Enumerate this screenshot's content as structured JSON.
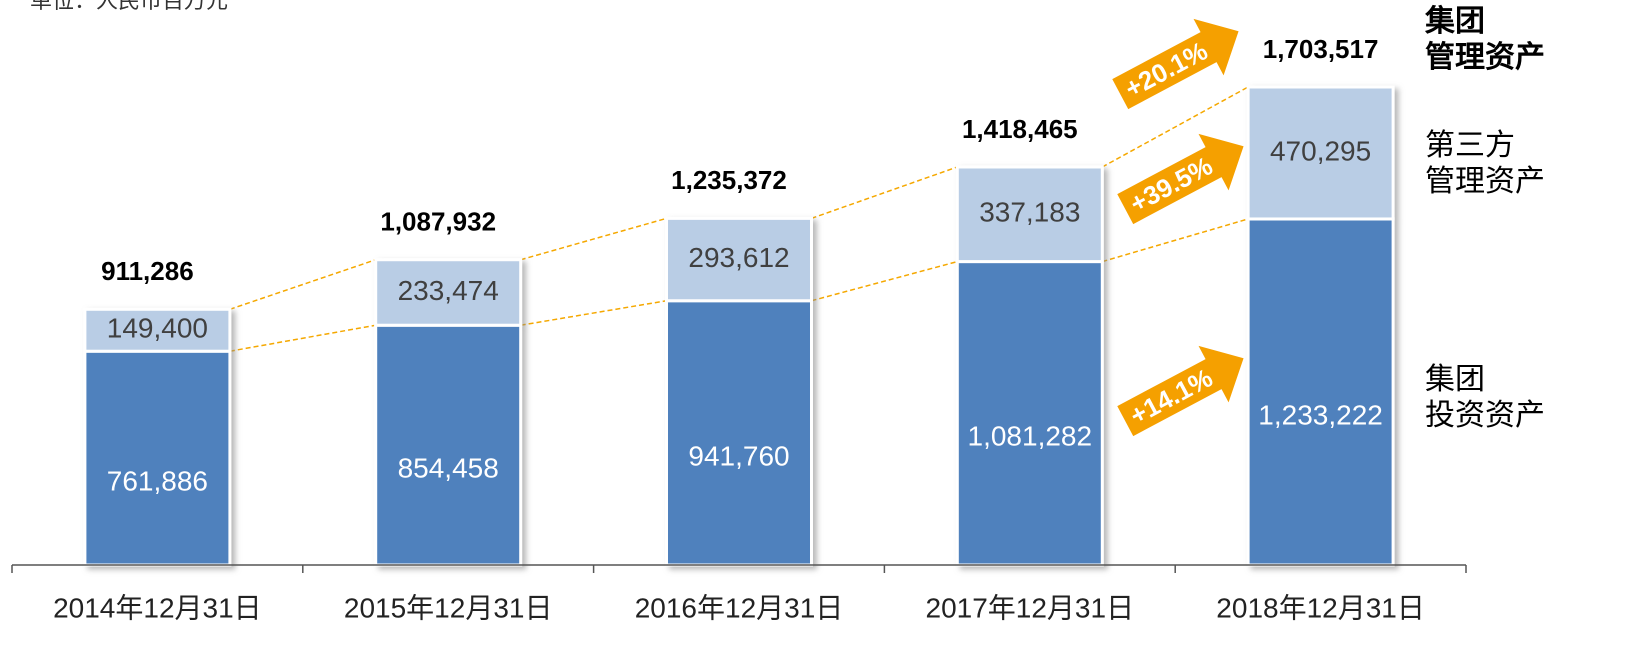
{
  "chart_data": {
    "type": "stacked_bar",
    "unit_note": "单位：人民币百万元",
    "categories": [
      "2014年12月31日",
      "2015年12月31日",
      "2016年12月31日",
      "2017年12月31日",
      "2018年12月31日"
    ],
    "series": [
      {
        "name": "集团\n投资资产",
        "color": "#4f81bd",
        "values": [
          761886,
          854458,
          941760,
          1081282,
          1233222
        ],
        "value_labels": [
          "761,886",
          "854,458",
          "941,760",
          "1,081,282",
          "1,233,222"
        ]
      },
      {
        "name": "第三方\n管理资产",
        "color": "#b9cde5",
        "values": [
          149400,
          233474,
          293612,
          337183,
          470295
        ],
        "value_labels": [
          "149,400",
          "233,474",
          "293,612",
          "337,183",
          "470,295"
        ]
      }
    ],
    "totals": {
      "name": "集团\n管理资产",
      "values": [
        911286,
        1087932,
        1235372,
        1418465,
        1703517
      ],
      "value_labels": [
        "911,286",
        "1,087,932",
        "1,235,372",
        "1,418,465",
        "1,703,517"
      ]
    },
    "annotations": [
      "+20.1%",
      "+39.5%",
      "+14.1%"
    ],
    "ylim": [
      0,
      1703517
    ]
  }
}
